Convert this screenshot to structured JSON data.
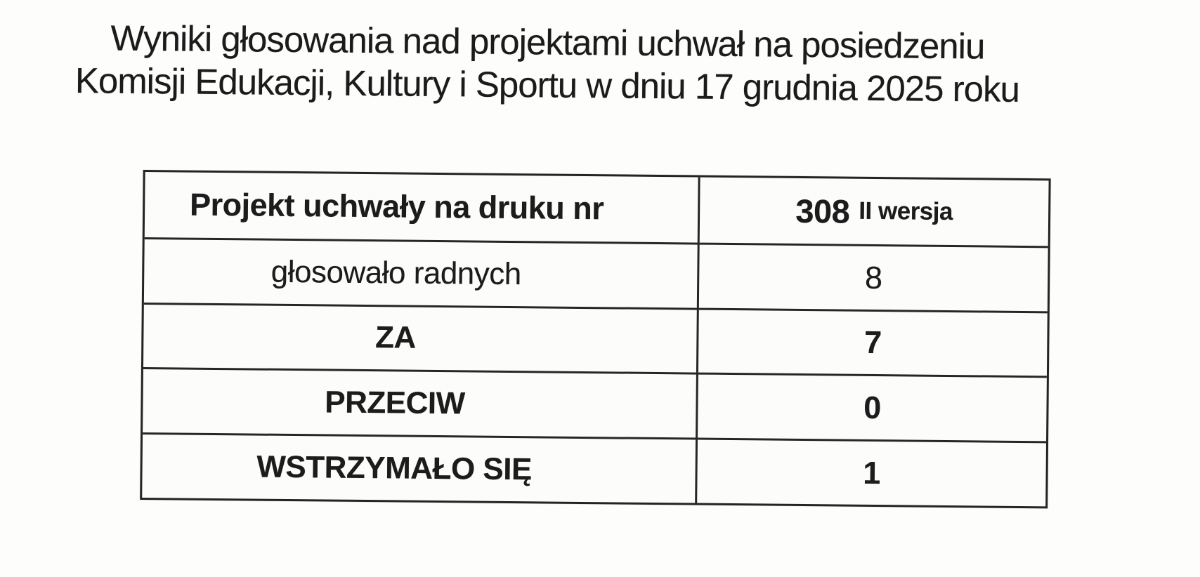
{
  "page": {
    "title_line1": "Wyniki głosowania nad projektami uchwał na posiedzeniu",
    "title_line2": "Komisji Edukacji, Kultury i Sportu w dniu 17 grudnia 2025 roku"
  },
  "table": {
    "header": {
      "label": "Projekt uchwały na druku nr",
      "value_number": "308",
      "value_suffix": "II wersja"
    },
    "rows": [
      {
        "label": "głosowało radnych",
        "value": "8"
      },
      {
        "label": "ZA",
        "value": "7"
      },
      {
        "label": "PRZECIW",
        "value": "0"
      },
      {
        "label": "WSTRZYMAŁO SIĘ",
        "value": "1"
      }
    ]
  },
  "colors": {
    "background": "#fdfdfc",
    "text": "#1c1c1c",
    "table_line": "#262626"
  }
}
